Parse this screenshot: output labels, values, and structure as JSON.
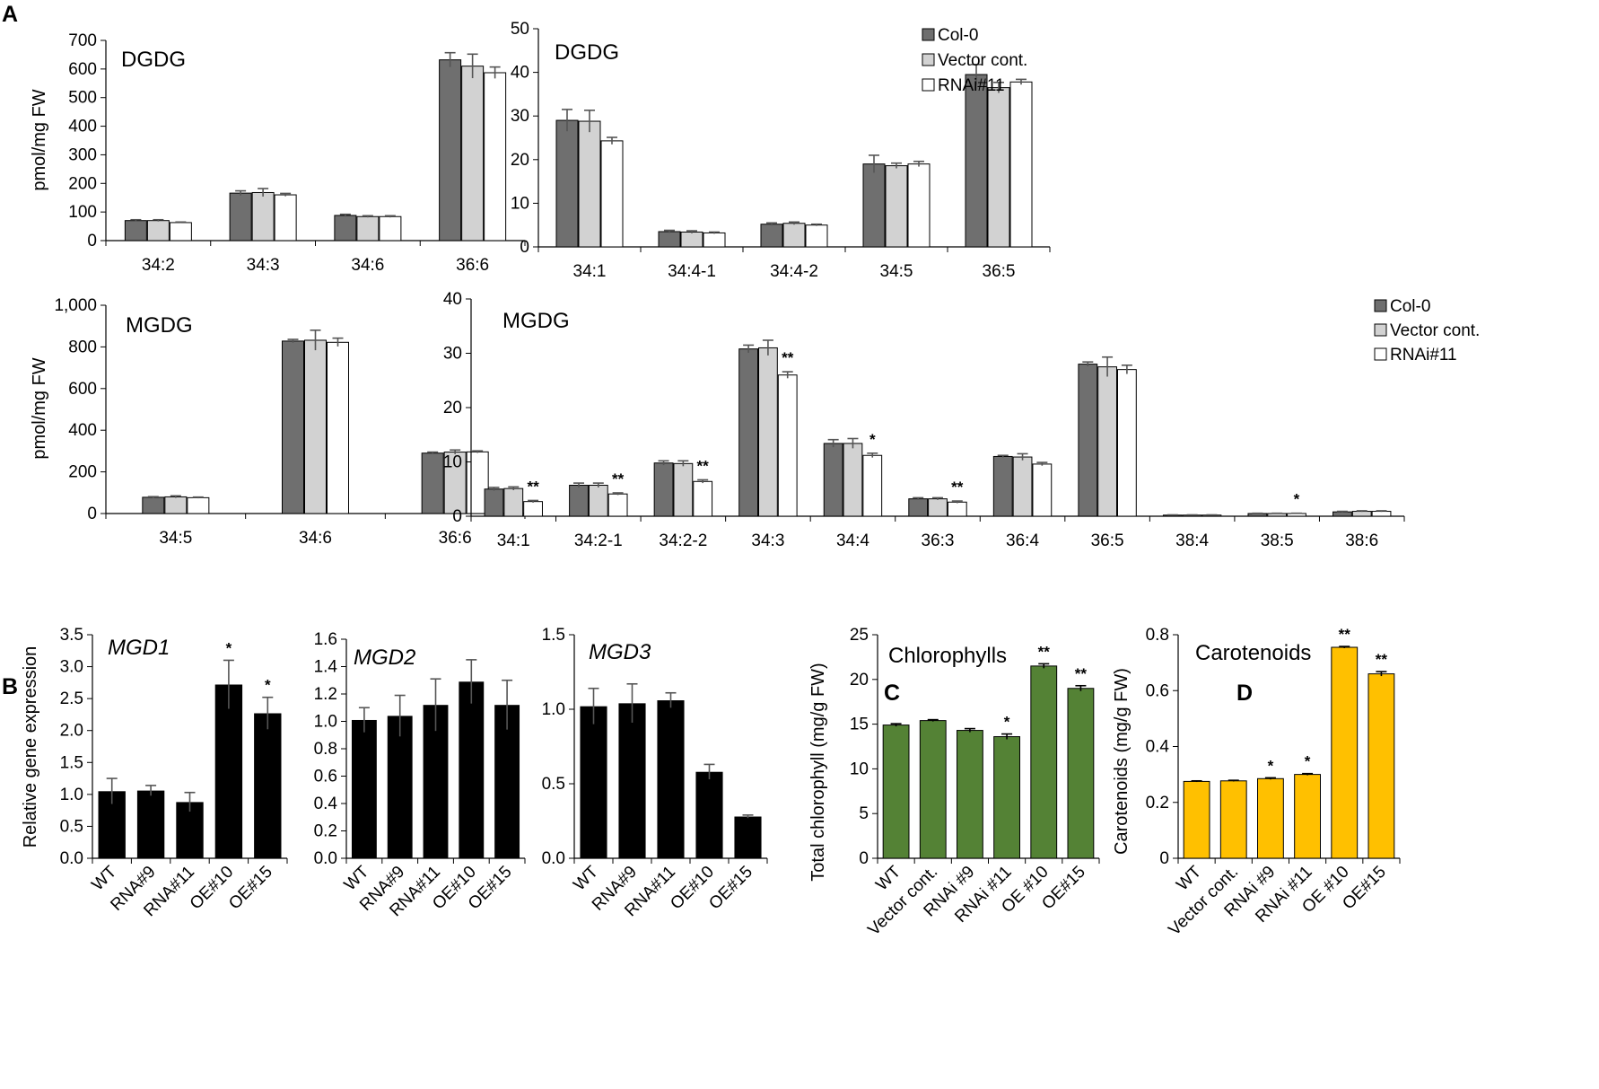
{
  "panel_labels": {
    "a": "A",
    "b": "B",
    "c": "C",
    "d": "D"
  },
  "colors": {
    "col0": "#6f6f6f",
    "vector": "#d2d2d2",
    "rnai": "#ffffff",
    "black": "#000000",
    "green": "#548235",
    "gold": "#ffc000",
    "error": "#555555"
  },
  "chart_data": [
    {
      "id": "dgdg-major",
      "type": "bar",
      "title": "DGDG",
      "ylabel": "pmol/mg FW",
      "ylim": [
        0,
        700
      ],
      "yticks": [
        "0",
        "100",
        "200",
        "300",
        "400",
        "500",
        "600",
        "700"
      ],
      "categories": [
        "34:2",
        "34:3",
        "34:6",
        "36:6"
      ],
      "series": [
        {
          "name": "Col-0",
          "values": [
            70,
            166,
            88,
            632
          ],
          "errors": [
            3,
            8,
            4,
            25
          ]
        },
        {
          "name": "Vector cont.",
          "values": [
            70,
            168,
            84,
            610
          ],
          "errors": [
            3,
            14,
            3,
            42
          ]
        },
        {
          "name": "RNAi#11",
          "values": [
            63,
            160,
            84,
            587
          ],
          "errors": [
            2,
            5,
            3,
            20
          ]
        }
      ],
      "significance": []
    },
    {
      "id": "dgdg-minor",
      "type": "bar",
      "title": "DGDG",
      "ylabel": "",
      "ylim": [
        0,
        50
      ],
      "yticks": [
        "0",
        "10",
        "20",
        "30",
        "40",
        "50"
      ],
      "categories": [
        "34:1",
        "34:4-1",
        "34:4-2",
        "34:5",
        "36:5"
      ],
      "series": [
        {
          "name": "Col-0",
          "values": [
            29,
            3.5,
            5.2,
            19,
            39.5
          ],
          "errors": [
            2.5,
            0.3,
            0.3,
            2,
            2.3
          ]
        },
        {
          "name": "Vector cont.",
          "values": [
            28.8,
            3.4,
            5.4,
            18.6,
            36.5
          ],
          "errors": [
            2.5,
            0.3,
            0.3,
            0.6,
            1.2
          ]
        },
        {
          "name": "RNAi#11",
          "values": [
            24.3,
            3.2,
            5.0,
            19,
            37.8
          ],
          "errors": [
            0.8,
            0.2,
            0.2,
            0.6,
            0.6
          ]
        }
      ],
      "legend": [
        "Col-0",
        "Vector cont.",
        "RNAi#11"
      ],
      "significance": []
    },
    {
      "id": "mgdg-major",
      "type": "bar",
      "title": "MGDG",
      "ylabel": "pmol/mg FW",
      "ylim": [
        0,
        1000
      ],
      "yticks": [
        "0",
        "200",
        "400",
        "600",
        "800",
        "1,000"
      ],
      "categories": [
        "34:5",
        "34:6",
        "36:6"
      ],
      "series": [
        {
          "name": "Col-0",
          "values": [
            78,
            828,
            290
          ],
          "errors": [
            3,
            8,
            5
          ]
        },
        {
          "name": "Vector cont.",
          "values": [
            80,
            832,
            295
          ],
          "errors": [
            5,
            48,
            10
          ]
        },
        {
          "name": "RNAi#11",
          "values": [
            76,
            822,
            296
          ],
          "errors": [
            3,
            20,
            5
          ]
        }
      ],
      "significance": []
    },
    {
      "id": "mgdg-minor",
      "type": "bar",
      "title": "MGDG",
      "ylabel": "",
      "ylim": [
        0,
        40
      ],
      "yticks": [
        "0",
        "10",
        "20",
        "30",
        "40"
      ],
      "categories": [
        "34:1",
        "34:2-1",
        "34:2-2",
        "34:3",
        "34:4",
        "36:3",
        "36:4",
        "36:5",
        "38:4",
        "38:5",
        "38:6"
      ],
      "series": [
        {
          "name": "Col-0",
          "values": [
            5.0,
            5.7,
            9.8,
            30.8,
            13.4,
            3.2,
            11.0,
            28.0,
            0.2,
            0.5,
            0.8
          ],
          "errors": [
            0.3,
            0.4,
            0.4,
            0.7,
            0.7,
            0.2,
            0.2,
            0.4,
            0.05,
            0.05,
            0.1
          ]
        },
        {
          "name": "Vector cont.",
          "values": [
            5.1,
            5.7,
            9.7,
            31.0,
            13.4,
            3.2,
            10.9,
            27.5,
            0.2,
            0.5,
            0.9
          ],
          "errors": [
            0.3,
            0.4,
            0.5,
            1.4,
            0.9,
            0.2,
            0.6,
            1.8,
            0.05,
            0.05,
            0.1
          ]
        },
        {
          "name": "RNAi#11",
          "values": [
            2.7,
            4.1,
            6.4,
            26.0,
            11.2,
            2.6,
            9.6,
            27.0,
            0.2,
            0.5,
            0.9
          ],
          "errors": [
            0.2,
            0.2,
            0.3,
            0.6,
            0.4,
            0.2,
            0.3,
            0.8,
            0.05,
            0.05,
            0.1
          ]
        }
      ],
      "legend": [
        "Col-0",
        "Vector cont.",
        "RNAi#11"
      ],
      "significance": [
        "**",
        "**",
        "**",
        "**",
        "*",
        "**",
        "",
        "",
        "",
        "*",
        ""
      ]
    },
    {
      "id": "mgd1",
      "type": "bar",
      "title": "MGD1",
      "ylabel": "Relative gene expression",
      "ylim": [
        0,
        3.5
      ],
      "yticks": [
        "0.0",
        "0.5",
        "1.0",
        "1.5",
        "2.0",
        "2.5",
        "3.0",
        "3.5"
      ],
      "categories": [
        "WT",
        "RNA#9",
        "RNA#11",
        "OE#10",
        "OE#15"
      ],
      "values": [
        1.05,
        1.06,
        0.88,
        2.72,
        2.27
      ],
      "errors": [
        0.2,
        0.08,
        0.15,
        0.38,
        0.25
      ],
      "significance": [
        "",
        "",
        "",
        "*",
        "*"
      ]
    },
    {
      "id": "mgd2",
      "type": "bar",
      "title": "MGD2",
      "ylabel": "",
      "ylim": [
        0,
        1.6
      ],
      "yticks": [
        "0.0",
        "0.2",
        "0.4",
        "0.6",
        "0.8",
        "1.0",
        "1.2",
        "1.4",
        "1.6"
      ],
      "categories": [
        "WT",
        "RNA#9",
        "RNA#11",
        "OE#10",
        "OE#15"
      ],
      "values": [
        1.01,
        1.04,
        1.12,
        1.29,
        1.12
      ],
      "errors": [
        0.09,
        0.15,
        0.19,
        0.16,
        0.18
      ],
      "significance": [
        "",
        "",
        "",
        "",
        ""
      ]
    },
    {
      "id": "mgd3",
      "type": "bar",
      "title": "MGD3",
      "ylabel": "",
      "ylim": [
        0,
        1.5
      ],
      "yticks": [
        "0.0",
        "0.5",
        "1.0",
        "1.5"
      ],
      "categories": [
        "WT",
        "RNA#9",
        "RNA#11",
        "OE#10",
        "OE#15"
      ],
      "values": [
        1.02,
        1.04,
        1.06,
        0.58,
        0.28
      ],
      "errors": [
        0.12,
        0.13,
        0.05,
        0.05,
        0.01
      ],
      "significance": [
        "",
        "",
        "",
        "",
        ""
      ]
    },
    {
      "id": "chlorophyll",
      "type": "bar",
      "title": "Chlorophylls",
      "ylabel": "Total chlorophyll (mg/g FW)",
      "ylim": [
        0,
        25
      ],
      "yticks": [
        "0",
        "5",
        "10",
        "15",
        "20",
        "25"
      ],
      "categories": [
        "WT",
        "Vector cont.",
        "RNAi #9",
        "RNAi #11",
        "OE #10",
        "OE#15"
      ],
      "values": [
        14.9,
        15.4,
        14.3,
        13.6,
        21.5,
        19.0
      ],
      "errors": [
        0.15,
        0.1,
        0.2,
        0.3,
        0.25,
        0.3
      ],
      "significance": [
        "",
        "",
        "",
        "*",
        "**",
        "**"
      ]
    },
    {
      "id": "carotenoids",
      "type": "bar",
      "title": "Carotenoids",
      "ylabel": "Carotenoids (mg/g FW)",
      "ylim": [
        0,
        0.8
      ],
      "yticks": [
        "0",
        "0.2",
        "0.4",
        "0.6",
        "0.8"
      ],
      "categories": [
        "WT",
        "Vector cont.",
        "RNAi #9",
        "RNAi #11",
        "OE #10",
        "OE#15"
      ],
      "values": [
        0.275,
        0.277,
        0.285,
        0.3,
        0.755,
        0.66
      ],
      "errors": [
        0.002,
        0.002,
        0.003,
        0.003,
        0.003,
        0.008
      ],
      "significance": [
        "",
        "",
        "*",
        "*",
        "**",
        "**"
      ]
    }
  ]
}
